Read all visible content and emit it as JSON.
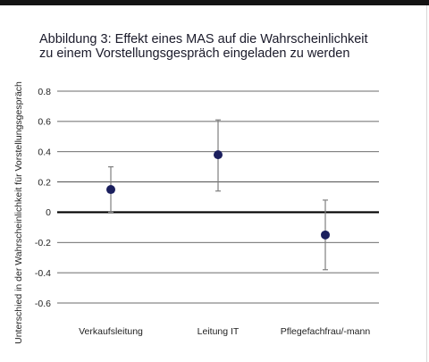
{
  "title_lines": [
    "Abbildung 3: Effekt eines MAS auf die Wahrscheinlichkeit",
    "zu einem Vorstellungsgespräch eingeladen zu werden"
  ],
  "colors": {
    "point": "#1b1f5e",
    "errorbar": "#7f7f7f",
    "grid": "#3a3a3a",
    "zero_line": "#000000",
    "text": "#222222"
  },
  "chart_data": {
    "type": "scatter",
    "title": "Abbildung 3: Effekt eines MAS auf die Wahrscheinlichkeit zu einem Vorstellungsgespräch eingeladen zu werden",
    "ylabel": "Unterschied in der Wahrscheinlichkeit für Vorstellungsgespräch",
    "xlabel": "",
    "categories": [
      "Verkaufsleitung",
      "Leitung IT",
      "Pflegefachfrau/-mann"
    ],
    "values": [
      0.15,
      0.38,
      -0.15
    ],
    "error_low": [
      0.0,
      0.14,
      -0.38
    ],
    "error_high": [
      0.3,
      0.61,
      0.08
    ],
    "ylim": [
      -0.6,
      0.8
    ],
    "yticks": [
      0.8,
      0.6,
      0.4,
      0.2,
      0,
      -0.2,
      -0.4,
      -0.6
    ],
    "ytick_labels": [
      "0.8",
      "0.6",
      "0.4",
      "0.2",
      "0",
      "-0.2",
      "-0.4",
      "-0.6"
    ],
    "grid": true,
    "zero_line": true
  }
}
